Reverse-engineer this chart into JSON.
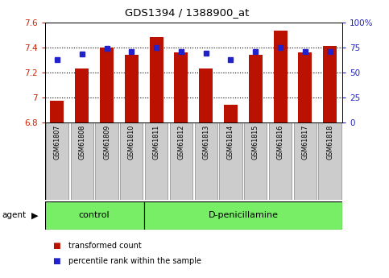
{
  "title": "GDS1394 / 1388900_at",
  "samples": [
    "GSM61807",
    "GSM61808",
    "GSM61809",
    "GSM61810",
    "GSM61811",
    "GSM61812",
    "GSM61813",
    "GSM61814",
    "GSM61815",
    "GSM61816",
    "GSM61817",
    "GSM61818"
  ],
  "red_values": [
    6.97,
    7.23,
    7.4,
    7.34,
    7.48,
    7.36,
    7.23,
    6.94,
    7.34,
    7.53,
    7.36,
    7.41
  ],
  "blue_pct": [
    63,
    68,
    74,
    71,
    75,
    71,
    69,
    63,
    71,
    75,
    71,
    71
  ],
  "ylim_left": [
    6.8,
    7.6
  ],
  "ylim_right": [
    0,
    100
  ],
  "yticks_left": [
    6.8,
    7.0,
    7.2,
    7.4,
    7.6
  ],
  "ytick_labels_left": [
    "6.8",
    "7",
    "7.2",
    "7.4",
    "7.6"
  ],
  "yticks_right": [
    0,
    25,
    50,
    75,
    100
  ],
  "ytick_labels_right": [
    "0",
    "25",
    "50",
    "75",
    "100%"
  ],
  "control_count": 4,
  "bar_bottom": 6.8,
  "bar_color": "#BB1100",
  "dot_color": "#2222CC",
  "bg_color": "#FFFFFF",
  "tick_color_left": "#CC2200",
  "tick_color_right": "#2222BB",
  "control_label": "control",
  "dpen_label": "D-penicillamine",
  "agent_label": "agent",
  "legend_red": "transformed count",
  "legend_blue": "percentile rank within the sample",
  "tick_label_bg": "#CCCCCC",
  "group_color": "#77EE66",
  "bar_width": 0.55
}
